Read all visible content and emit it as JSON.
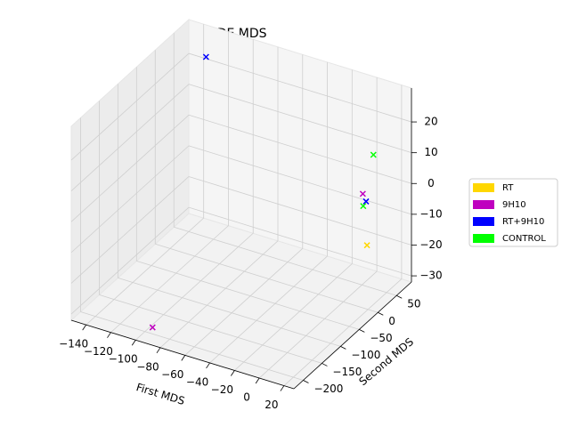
{
  "chart_data": {
    "type": "scatter3d",
    "title": "KDE MDS",
    "xlabel": "First MDS",
    "ylabel": "Second MDS",
    "xlim": [
      -152,
      28
    ],
    "ylim": [
      -225,
      90
    ],
    "zlim": [
      -32,
      31
    ],
    "xticks": [
      {
        "value": -140,
        "label": "−140"
      },
      {
        "value": -120,
        "label": "−120"
      },
      {
        "value": -100,
        "label": "−100"
      },
      {
        "value": -80,
        "label": "−80"
      },
      {
        "value": -60,
        "label": "−60"
      },
      {
        "value": -40,
        "label": "−40"
      },
      {
        "value": -20,
        "label": "−20"
      },
      0,
      20
    ],
    "yticks": [
      {
        "value": -200,
        "label": "−200"
      },
      {
        "value": -150,
        "label": "−150"
      },
      {
        "value": -100,
        "label": "−100"
      },
      {
        "value": -50,
        "label": "−50"
      },
      0,
      50
    ],
    "zticks": [
      {
        "value": -30,
        "label": "−30"
      },
      {
        "value": -20,
        "label": "−20"
      },
      {
        "value": -10,
        "label": "−10"
      },
      0,
      10,
      20
    ],
    "grid": true,
    "legend": "right",
    "series": [
      {
        "name": "RT",
        "color": "#ffd700",
        "x": [
          15.6
        ],
        "y": [
          12
        ],
        "z": [
          -13
        ]
      },
      {
        "name": "9H10",
        "color": "#bf00bf",
        "x": [
          -92,
          11
        ],
        "y": [
          -206,
          16
        ],
        "z": [
          -29,
          2.7
        ]
      },
      {
        "name": "RT+9H10",
        "color": "#0000ff",
        "x": [
          -129,
          11.5
        ],
        "y": [
          60,
          23
        ],
        "z": [
          25,
          -0.5
        ]
      },
      {
        "name": "CONTROL",
        "color": "#00ff00",
        "x": [
          10.5,
          6.5
        ],
        "y": [
          46,
          32
        ],
        "z": [
          12,
          -3.6
        ]
      }
    ]
  }
}
